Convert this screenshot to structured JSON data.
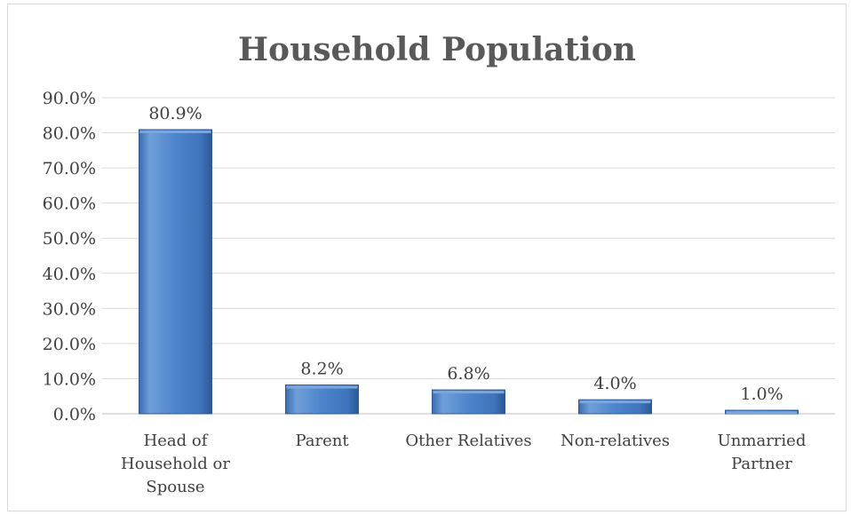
{
  "chart_data": {
    "type": "bar",
    "title": "Household Population",
    "categories": [
      [
        "Head of",
        "Household or",
        "Spouse"
      ],
      [
        "Parent"
      ],
      [
        "Other Relatives"
      ],
      [
        "Non-relatives"
      ],
      [
        "Unmarried",
        "Partner"
      ]
    ],
    "values": [
      80.9,
      8.2,
      6.8,
      4.0,
      1.0
    ],
    "data_labels": [
      "80.9%",
      "8.2%",
      "6.8%",
      "4.0%",
      "1.0%"
    ],
    "y_ticks": [
      "0.0%",
      "10.0%",
      "20.0%",
      "30.0%",
      "40.0%",
      "50.0%",
      "60.0%",
      "70.0%",
      "80.0%",
      "90.0%"
    ],
    "ylim": [
      0,
      90
    ],
    "grid": true,
    "bar_color": "#4a7fc4",
    "bar_color_light": "#7aa6dc",
    "bar_color_dark": "#2e5a96"
  }
}
